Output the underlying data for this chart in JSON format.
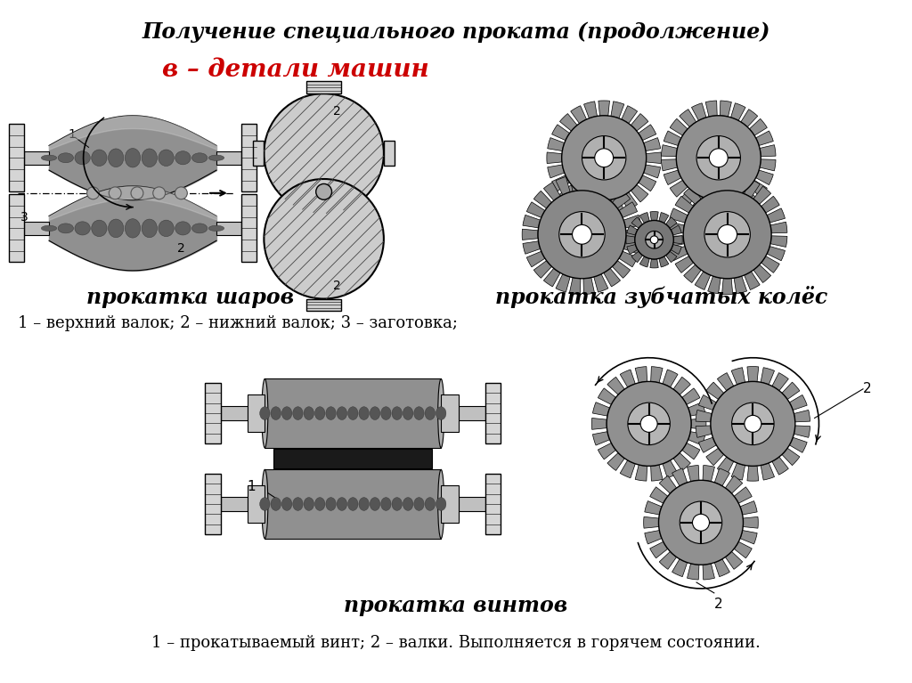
{
  "title": "Получение специального проката (продолжение)",
  "subtitle": "в – детали машин",
  "subtitle_color": "#cc0000",
  "section1_label": "прокатка шаров",
  "section1_desc": "1 – верхний валок; 2 – нижний валок; 3 – заготовка;",
  "section2_label": "прокатка зубчатых колёс",
  "section3_label": "прокатка винтов",
  "section3_desc": "1 – прокатываемый винт; 2 – валки. Выполняется в горячем состоянии.",
  "bg_color": "#ffffff",
  "text_color": "#000000",
  "title_fontsize": 17,
  "subtitle_fontsize": 20,
  "label_fontsize": 17,
  "desc_fontsize": 13,
  "fig_width": 10.24,
  "fig_height": 7.67
}
